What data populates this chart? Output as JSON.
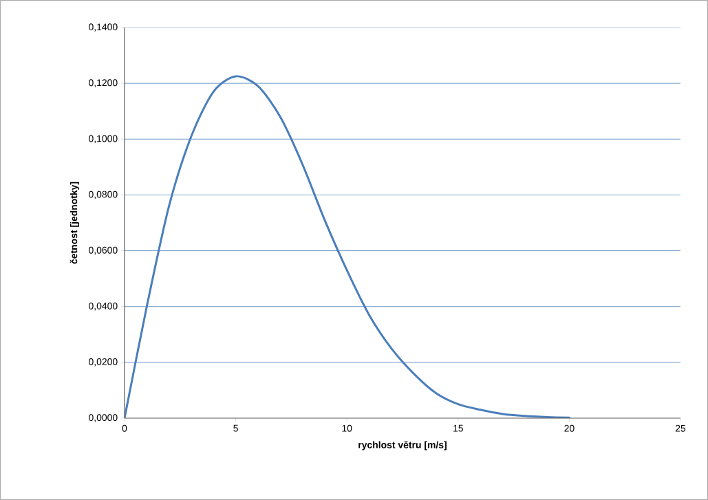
{
  "chart_data": {
    "type": "line",
    "xlabel": "rychlost větru [m/s]",
    "ylabel": "četnost [jednotky]",
    "x": [
      0,
      1,
      2,
      3,
      4,
      5,
      6,
      7,
      8,
      9,
      10,
      11,
      12,
      13,
      14,
      15,
      16,
      17,
      18,
      19,
      20
    ],
    "series": [
      {
        "color": "#4a7ebb",
        "values": [
          0,
          0.04,
          0.076,
          0.101,
          0.117,
          0.1225,
          0.119,
          0.108,
          0.091,
          0.071,
          0.053,
          0.037,
          0.025,
          0.016,
          0.009,
          0.005,
          0.003,
          0.0015,
          0.0008,
          0.0004,
          0.0002
        ]
      }
    ],
    "xlim": [
      0,
      25
    ],
    "xticks": [
      0,
      5,
      10,
      15,
      20,
      25
    ],
    "ylim": [
      0,
      0.14
    ],
    "yticks": [
      {
        "value": 0,
        "label": "0,0000"
      },
      {
        "value": 0.02,
        "label": "0,0200"
      },
      {
        "value": 0.04,
        "label": "0,0400"
      },
      {
        "value": 0.06,
        "label": "0,0600"
      },
      {
        "value": 0.08,
        "label": "0,0800"
      },
      {
        "value": 0.1,
        "label": "0,1000"
      },
      {
        "value": 0.12,
        "label": "0,1200"
      },
      {
        "value": 0.14,
        "label": "0,1400"
      }
    ],
    "grid": "y",
    "marker": "none",
    "line_style": "solid"
  }
}
